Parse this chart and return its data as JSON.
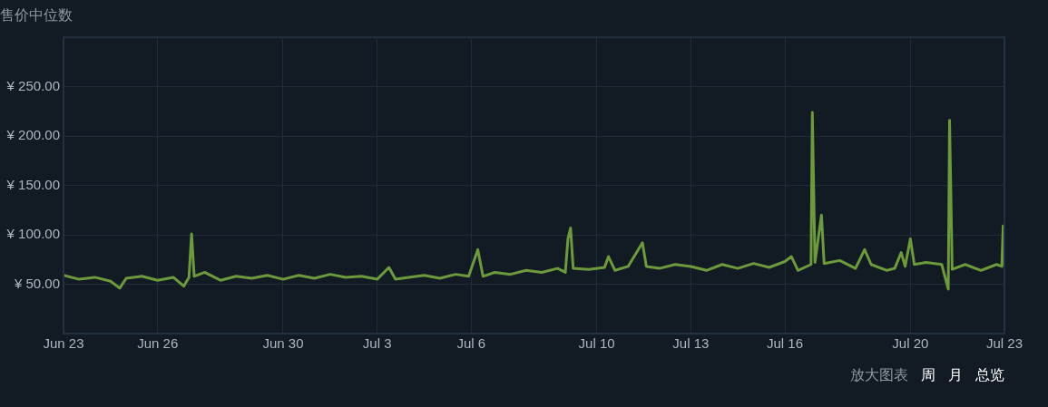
{
  "chart_data": {
    "type": "line",
    "title": "售价中位数",
    "x": [
      "--06-23T00:00",
      "--06-23T12:00",
      "--06-24T00:00",
      "--06-24T12:00",
      "--06-24T19:00",
      "--06-25T00:00",
      "--06-25T12:00",
      "--06-26T00:00",
      "--06-26T12:00",
      "--06-26T20:00",
      "--06-27T00:00",
      "--06-27T02:00",
      "--06-27T04:00",
      "--06-27T12:00",
      "--06-28T00:00",
      "--06-28T12:00",
      "--06-29T00:00",
      "--06-29T12:00",
      "--06-30T00:00",
      "--06-30T12:00",
      "--07-01T00:00",
      "--07-01T12:00",
      "--07-02T00:00",
      "--07-02T12:00",
      "--07-03T00:00",
      "--07-03T09:00",
      "--07-03T14:00",
      "--07-04T00:00",
      "--07-04T12:00",
      "--07-05T00:00",
      "--07-05T12:00",
      "--07-05T22:00",
      "--07-06T05:00",
      "--07-06T09:00",
      "--07-06T18:00",
      "--07-07T06:00",
      "--07-07T18:00",
      "--07-08T06:00",
      "--07-08T18:00",
      "--07-09T00:00",
      "--07-09T02:00",
      "--07-09T04:00",
      "--07-09T06:00",
      "--07-09T18:00",
      "--07-10T06:00",
      "--07-10T09:00",
      "--07-10T14:00",
      "--07-11T00:00",
      "--07-11T11:00",
      "--07-11T14:00",
      "--07-12T00:00",
      "--07-12T12:00",
      "--07-13T00:00",
      "--07-13T12:00",
      "--07-14T00:00",
      "--07-14T12:00",
      "--07-15T00:00",
      "--07-15T12:00",
      "--07-16T00:00",
      "--07-16T05:00",
      "--07-16T10:00",
      "--07-16T20:00",
      "--07-16T21:00",
      "--07-16T23:00",
      "--07-17T04:00",
      "--07-17T06:00",
      "--07-17T18:00",
      "--07-18T06:00",
      "--07-18T13:00",
      "--07-18T18:00",
      "--07-19T06:00",
      "--07-19T12:00",
      "--07-19T17:00",
      "--07-19T20:00",
      "--07-20T00:00",
      "--07-20T03:00",
      "--07-20T12:00",
      "--07-21T00:00",
      "--07-21T05:00",
      "--07-21T06:00",
      "--07-21T08:00",
      "--07-21T18:00",
      "--07-22T06:00",
      "--07-22T18:00",
      "--07-22T22:00",
      "--07-22T23:00",
      "--07-23T00:00"
    ],
    "series": [
      {
        "color": "#6c9a3c",
        "values": [
          59,
          55,
          57,
          53,
          46,
          56,
          58,
          54,
          57,
          48,
          57,
          101,
          58,
          62,
          54,
          58,
          56,
          59,
          55,
          59,
          56,
          60,
          57,
          58,
          55,
          67,
          55,
          57,
          59,
          56,
          60,
          58,
          85,
          58,
          62,
          60,
          64,
          62,
          66,
          62,
          96,
          107,
          66,
          65,
          67,
          78,
          64,
          68,
          92,
          68,
          66,
          70,
          68,
          64,
          70,
          66,
          71,
          67,
          73,
          78,
          64,
          70,
          224,
          72,
          120,
          71,
          74,
          66,
          85,
          70,
          64,
          66,
          82,
          68,
          96,
          70,
          72,
          70,
          45,
          216,
          65,
          70,
          64,
          70,
          68,
          109,
          69
        ]
      }
    ],
    "xlim": [
      "--06-23T00:00",
      "--07-23T00:00"
    ],
    "xticks": [
      {
        "value": "--06-23T00:00",
        "label": "Jun 23"
      },
      {
        "value": "--06-26T00:00",
        "label": "Jun 26"
      },
      {
        "value": "--06-30T00:00",
        "label": "Jun 30"
      },
      {
        "value": "--07-03T00:00",
        "label": "Jul 3"
      },
      {
        "value": "--07-06T00:00",
        "label": "Jul 6"
      },
      {
        "value": "--07-10T00:00",
        "label": "Jul 10"
      },
      {
        "value": "--07-13T00:00",
        "label": "Jul 13"
      },
      {
        "value": "--07-16T00:00",
        "label": "Jul 16"
      },
      {
        "value": "--07-20T00:00",
        "label": "Jul 20"
      },
      {
        "value": "--07-23T00:00",
        "label": "Jul 23"
      }
    ],
    "ylim": [
      0,
      300
    ],
    "yticks": [
      {
        "value": 50,
        "label": "¥ 50.00"
      },
      {
        "value": 100,
        "label": "¥ 100.00"
      },
      {
        "value": 150,
        "label": "¥ 150.00"
      },
      {
        "value": 200,
        "label": "¥ 200.00"
      },
      {
        "value": 250,
        "label": "¥ 250.00"
      }
    ],
    "grid": true,
    "legend": false,
    "marker": "none",
    "line_style": "solid",
    "annotations": [
      "放大图表",
      "周",
      "月",
      "总览"
    ]
  }
}
